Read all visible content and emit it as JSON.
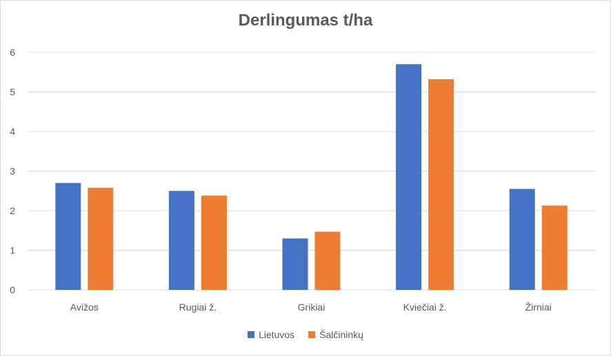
{
  "chart_data": {
    "type": "bar",
    "title": "Derlingumas t/ha",
    "categories": [
      "Avižos",
      "Rugiai ž.",
      "Grikiai",
      "Kviečiai ž.",
      "Žirniai"
    ],
    "series": [
      {
        "name": "Lietuvos",
        "values": [
          2.7,
          2.5,
          1.3,
          5.7,
          2.55
        ],
        "color": "#4472C4"
      },
      {
        "name": "Šalčininkų",
        "values": [
          2.58,
          2.38,
          1.47,
          5.32,
          2.13
        ],
        "color": "#ED7D31"
      }
    ],
    "ylim": [
      0,
      6
    ],
    "yticks": [
      0,
      1,
      2,
      3,
      4,
      5,
      6
    ],
    "grid": true,
    "legend_position": "bottom"
  }
}
